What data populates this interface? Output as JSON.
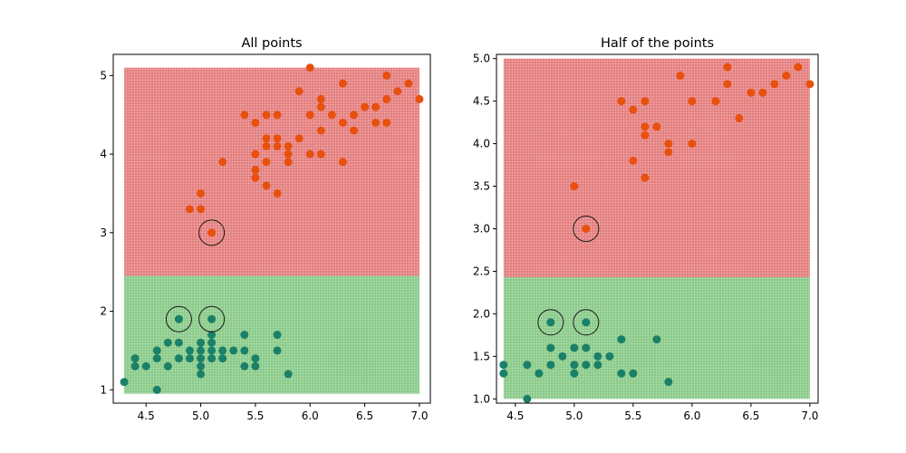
{
  "colors": {
    "region_upper": "#e07070",
    "region_lower": "#7cc47c",
    "point_upper": "#e8500e",
    "point_lower": "#1a8068",
    "point_lower_edge": "#1f6f86",
    "circle": "#1a1a1a",
    "axes": "#000000"
  },
  "chart_data": [
    {
      "type": "scatter",
      "title": "All points",
      "xlabel": "",
      "ylabel": "",
      "xlim": [
        4.2,
        7.1
      ],
      "ylim": [
        0.83,
        5.27
      ],
      "xticks": [
        4.5,
        5.0,
        5.5,
        6.0,
        6.5,
        7.0
      ],
      "xtick_labels": [
        "4.5",
        "5.0",
        "5.5",
        "6.0",
        "6.5",
        "7.0"
      ],
      "yticks": [
        1,
        2,
        3,
        4,
        5
      ],
      "ytick_labels": [
        "1",
        "2",
        "3",
        "4",
        "5"
      ],
      "grid": false,
      "regions": [
        {
          "class": "upper",
          "x": [
            4.3,
            7.0
          ],
          "y": [
            2.45,
            5.1
          ]
        },
        {
          "class": "lower",
          "x": [
            4.3,
            7.0
          ],
          "y": [
            0.95,
            2.45
          ]
        }
      ],
      "series": [
        {
          "class": "upper",
          "points": [
            [
              6.0,
              5.1
            ],
            [
              6.7,
              5.0
            ],
            [
              6.9,
              4.9
            ],
            [
              6.3,
              4.9
            ],
            [
              5.9,
              4.8
            ],
            [
              6.8,
              4.8
            ],
            [
              7.0,
              4.7
            ],
            [
              6.1,
              4.7
            ],
            [
              6.7,
              4.7
            ],
            [
              6.1,
              4.6
            ],
            [
              6.6,
              4.6
            ],
            [
              6.5,
              4.6
            ],
            [
              6.0,
              4.5
            ],
            [
              6.2,
              4.5
            ],
            [
              6.4,
              4.5
            ],
            [
              5.4,
              4.5
            ],
            [
              5.6,
              4.5
            ],
            [
              5.7,
              4.5
            ],
            [
              5.5,
              4.4
            ],
            [
              6.3,
              4.4
            ],
            [
              6.7,
              4.4
            ],
            [
              6.6,
              4.4
            ],
            [
              6.1,
              4.3
            ],
            [
              6.4,
              4.3
            ],
            [
              5.6,
              4.2
            ],
            [
              5.7,
              4.2
            ],
            [
              5.9,
              4.2
            ],
            [
              5.6,
              4.1
            ],
            [
              5.7,
              4.1
            ],
            [
              5.8,
              4.1
            ],
            [
              5.5,
              4.0
            ],
            [
              5.8,
              4.0
            ],
            [
              6.0,
              4.0
            ],
            [
              6.1,
              4.0
            ],
            [
              5.6,
              3.9
            ],
            [
              5.8,
              3.9
            ],
            [
              6.3,
              3.9
            ],
            [
              5.2,
              3.9
            ],
            [
              5.5,
              3.8
            ],
            [
              5.5,
              3.7
            ],
            [
              5.6,
              3.6
            ],
            [
              5.7,
              3.5
            ],
            [
              5.0,
              3.5
            ],
            [
              4.9,
              3.3
            ],
            [
              5.0,
              3.3
            ],
            [
              5.1,
              3.0
            ]
          ]
        },
        {
          "class": "lower",
          "points": [
            [
              4.8,
              1.9
            ],
            [
              5.1,
              1.9
            ],
            [
              5.1,
              1.7
            ],
            [
              5.4,
              1.7
            ],
            [
              5.7,
              1.7
            ],
            [
              4.7,
              1.6
            ],
            [
              4.8,
              1.6
            ],
            [
              5.0,
              1.6
            ],
            [
              5.1,
              1.6
            ],
            [
              4.9,
              1.5
            ],
            [
              5.0,
              1.5
            ],
            [
              5.1,
              1.5
            ],
            [
              5.2,
              1.5
            ],
            [
              5.3,
              1.5
            ],
            [
              5.4,
              1.5
            ],
            [
              5.7,
              1.5
            ],
            [
              4.6,
              1.5
            ],
            [
              4.4,
              1.4
            ],
            [
              4.6,
              1.4
            ],
            [
              4.8,
              1.4
            ],
            [
              4.9,
              1.4
            ],
            [
              5.0,
              1.4
            ],
            [
              5.1,
              1.4
            ],
            [
              5.2,
              1.4
            ],
            [
              5.5,
              1.4
            ],
            [
              4.4,
              1.3
            ],
            [
              4.5,
              1.3
            ],
            [
              4.7,
              1.3
            ],
            [
              5.0,
              1.3
            ],
            [
              5.4,
              1.3
            ],
            [
              5.5,
              1.3
            ],
            [
              5.0,
              1.2
            ],
            [
              5.8,
              1.2
            ],
            [
              4.3,
              1.1
            ],
            [
              4.6,
              1.0
            ]
          ]
        }
      ],
      "highlighted": [
        [
          5.1,
          3.0
        ],
        [
          4.8,
          1.9
        ],
        [
          5.1,
          1.9
        ]
      ]
    },
    {
      "type": "scatter",
      "title": "Half of the points",
      "xlabel": "",
      "ylabel": "",
      "xlim": [
        4.34,
        7.07
      ],
      "ylim": [
        0.95,
        5.05
      ],
      "xticks": [
        4.5,
        5.0,
        5.5,
        6.0,
        6.5,
        7.0
      ],
      "xtick_labels": [
        "4.5",
        "5.0",
        "5.5",
        "6.0",
        "6.5",
        "7.0"
      ],
      "yticks": [
        1.0,
        1.5,
        2.0,
        2.5,
        3.0,
        3.5,
        4.0,
        4.5,
        5.0
      ],
      "ytick_labels": [
        "1.0",
        "1.5",
        "2.0",
        "2.5",
        "3.0",
        "3.5",
        "4.0",
        "4.5",
        "5.0"
      ],
      "grid": false,
      "regions": [
        {
          "class": "upper",
          "x": [
            4.4,
            7.0
          ],
          "y": [
            2.43,
            5.0
          ]
        },
        {
          "class": "lower",
          "x": [
            4.4,
            7.0
          ],
          "y": [
            1.0,
            2.43
          ]
        }
      ],
      "series": [
        {
          "class": "upper",
          "points": [
            [
              6.3,
              4.9
            ],
            [
              6.9,
              4.9
            ],
            [
              5.9,
              4.8
            ],
            [
              6.8,
              4.8
            ],
            [
              7.0,
              4.7
            ],
            [
              6.3,
              4.7
            ],
            [
              6.7,
              4.7
            ],
            [
              6.5,
              4.6
            ],
            [
              6.6,
              4.6
            ],
            [
              5.4,
              4.5
            ],
            [
              5.6,
              4.5
            ],
            [
              6.0,
              4.5
            ],
            [
              6.2,
              4.5
            ],
            [
              5.5,
              4.4
            ],
            [
              6.4,
              4.3
            ],
            [
              5.6,
              4.2
            ],
            [
              5.7,
              4.2
            ],
            [
              5.6,
              4.1
            ],
            [
              5.8,
              4.0
            ],
            [
              6.0,
              4.0
            ],
            [
              5.8,
              3.9
            ],
            [
              5.5,
              3.8
            ],
            [
              5.6,
              3.6
            ],
            [
              5.0,
              3.5
            ],
            [
              5.1,
              3.0
            ]
          ]
        },
        {
          "class": "lower",
          "points": [
            [
              4.8,
              1.9
            ],
            [
              5.1,
              1.9
            ],
            [
              5.4,
              1.7
            ],
            [
              5.7,
              1.7
            ],
            [
              4.8,
              1.6
            ],
            [
              5.0,
              1.6
            ],
            [
              5.1,
              1.6
            ],
            [
              4.9,
              1.5
            ],
            [
              5.2,
              1.5
            ],
            [
              5.3,
              1.5
            ],
            [
              4.4,
              1.4
            ],
            [
              4.6,
              1.4
            ],
            [
              4.8,
              1.4
            ],
            [
              5.0,
              1.4
            ],
            [
              5.1,
              1.4
            ],
            [
              5.2,
              1.4
            ],
            [
              4.4,
              1.3
            ],
            [
              4.7,
              1.3
            ],
            [
              5.0,
              1.3
            ],
            [
              5.4,
              1.3
            ],
            [
              5.5,
              1.3
            ],
            [
              5.8,
              1.2
            ],
            [
              4.6,
              1.0
            ]
          ]
        }
      ],
      "highlighted": [
        [
          5.1,
          3.0
        ],
        [
          4.8,
          1.9
        ],
        [
          5.1,
          1.9
        ]
      ]
    }
  ]
}
